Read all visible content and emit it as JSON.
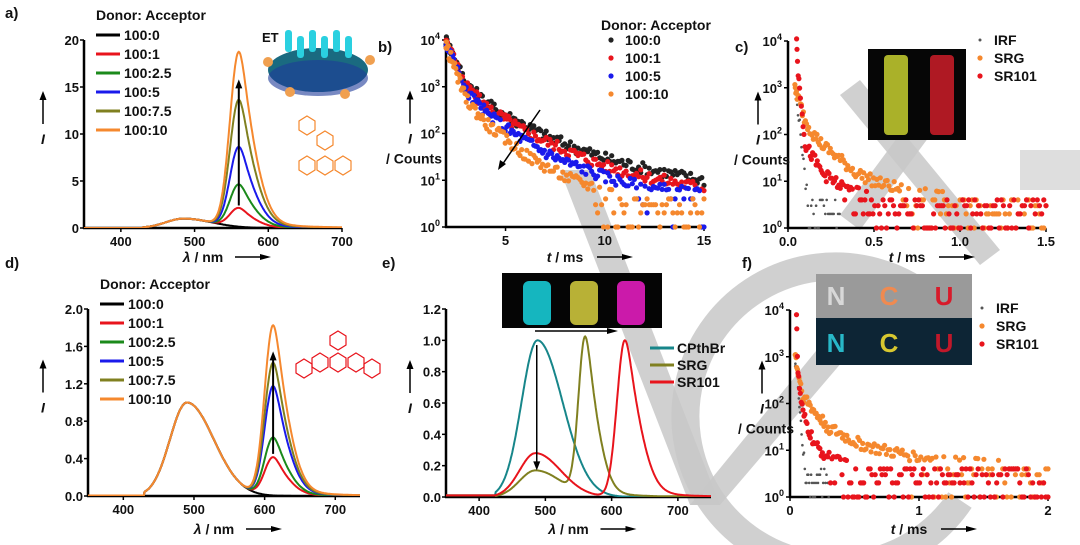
{
  "watermark": {
    "text": "VCH",
    "color": "#c8c8c8"
  },
  "chart_data": [
    {
      "panel": "a)",
      "type": "line",
      "xlabel": "λ / nm",
      "ylabel": "I",
      "xlim": [
        350,
        700
      ],
      "ylim": [
        0,
        20
      ],
      "xticks": [
        400,
        500,
        600,
        700
      ],
      "yticks": [
        0,
        5,
        10,
        15,
        20
      ],
      "legend_title": "Donor: Acceptor",
      "legend_position": "top-left",
      "annotation": "arrow upward at 560 nm (increasing acceptor)",
      "inset": "vesicle illustration with ET arrows; SRG molecular structure (orange)",
      "donor_peak_nm": 485,
      "acceptor_peak_nm": 560,
      "series": [
        {
          "name": "100:0",
          "color": "#000000",
          "donor_peak": 1.0,
          "acceptor_peak": 0.0
        },
        {
          "name": "100:1",
          "color": "#e8141c",
          "donor_peak": 1.0,
          "acceptor_peak": 2.0
        },
        {
          "name": "100:2.5",
          "color": "#1b8a1b",
          "donor_peak": 1.0,
          "acceptor_peak": 4.5
        },
        {
          "name": "100:5",
          "color": "#1a1aeb",
          "donor_peak": 1.0,
          "acceptor_peak": 8.5
        },
        {
          "name": "100:7.5",
          "color": "#808020",
          "donor_peak": 1.0,
          "acceptor_peak": 13.5
        },
        {
          "name": "100:10",
          "color": "#f5882e",
          "donor_peak": 1.0,
          "acceptor_peak": 18.6
        }
      ]
    },
    {
      "panel": "b)",
      "type": "scatter",
      "xlabel": "t / ms",
      "ylabel": "I / Counts",
      "yscale": "log",
      "xlim": [
        2,
        15
      ],
      "ylim": [
        1,
        10000
      ],
      "xticks": [
        5,
        10,
        15
      ],
      "yticks": [
        "10^0",
        "10^1",
        "10^2",
        "10^3",
        "10^4"
      ],
      "legend_title": "Donor: Acceptor",
      "legend_position": "top-right",
      "annotation": "arrow downward-left (decreasing lifetime)",
      "series": [
        {
          "name": "100:0",
          "color": "#222222",
          "x": [
            2,
            3,
            4,
            5,
            6,
            7,
            8,
            10,
            12,
            15
          ],
          "y": [
            10000,
            1200,
            450,
            250,
            150,
            90,
            60,
            30,
            18,
            10
          ]
        },
        {
          "name": "100:1",
          "color": "#e8141c",
          "x": [
            2,
            3,
            4,
            5,
            6,
            7,
            8,
            10,
            12,
            15
          ],
          "y": [
            10000,
            1000,
            380,
            200,
            110,
            70,
            45,
            20,
            12,
            7
          ]
        },
        {
          "name": "100:5",
          "color": "#1a1aeb",
          "x": [
            2,
            3,
            4,
            5,
            6,
            7,
            8,
            10,
            12,
            15
          ],
          "y": [
            9000,
            800,
            280,
            130,
            70,
            40,
            25,
            12,
            7,
            5
          ]
        },
        {
          "name": "100:10",
          "color": "#f5882e",
          "x": [
            2,
            3,
            4,
            5,
            6,
            7,
            8,
            10,
            12,
            15
          ],
          "y": [
            8000,
            550,
            170,
            75,
            35,
            20,
            12,
            6,
            4,
            3
          ]
        }
      ]
    },
    {
      "panel": "c)",
      "type": "scatter",
      "xlabel": "t / ms",
      "ylabel": "I / Counts",
      "yscale": "log",
      "xlim": [
        0,
        1.5
      ],
      "ylim": [
        1,
        10000
      ],
      "xticks": [
        "0.0",
        "0.5",
        "1.0",
        "1.5"
      ],
      "yticks": [
        "10^0",
        "10^1",
        "10^2",
        "10^3",
        "10^4"
      ],
      "legend_position": "top-right",
      "inset": "photo of two glowing vials (yellow, red)",
      "series": [
        {
          "name": "IRF",
          "color": "#555555",
          "x": [
            0.04,
            0.06,
            0.08,
            0.1,
            0.12,
            0.15,
            0.2,
            0.3
          ],
          "y": [
            800,
            300,
            60,
            10,
            4,
            2,
            2,
            2
          ]
        },
        {
          "name": "SRG",
          "color": "#f5882e",
          "x": [
            0.04,
            0.06,
            0.1,
            0.15,
            0.2,
            0.3,
            0.4,
            0.5,
            0.7,
            1.0,
            1.5
          ],
          "y": [
            900,
            600,
            200,
            100,
            60,
            30,
            15,
            10,
            6,
            4,
            3
          ]
        },
        {
          "name": "SR101",
          "color": "#e8141c",
          "x": [
            0.05,
            0.06,
            0.08,
            0.1,
            0.15,
            0.2,
            0.3,
            0.5,
            0.7,
            1.0,
            1.5
          ],
          "y": [
            10000,
            1800,
            400,
            60,
            30,
            15,
            8,
            4,
            3,
            2,
            2
          ]
        }
      ]
    },
    {
      "panel": "d)",
      "type": "line",
      "xlabel": "λ / nm",
      "ylabel": "I",
      "xlim": [
        350,
        735
      ],
      "ylim": [
        0,
        2.0
      ],
      "xticks": [
        400,
        500,
        600,
        700
      ],
      "yticks": [
        "0.0",
        "0.4",
        "0.8",
        "1.2",
        "1.6",
        "2.0"
      ],
      "legend_title": "Donor: Acceptor",
      "legend_position": "top-left",
      "annotation": "arrow upward at 612 nm",
      "inset": "SR101 molecular structure (red)",
      "donor_peak_nm": 490,
      "acceptor_peak_nm": 612,
      "series": [
        {
          "name": "100:0",
          "color": "#000000",
          "donor_peak": 1.0,
          "acceptor_peak": 0.0
        },
        {
          "name": "100:1",
          "color": "#e8141c",
          "donor_peak": 1.0,
          "acceptor_peak": 0.41
        },
        {
          "name": "100:2.5",
          "color": "#1b8a1b",
          "donor_peak": 1.0,
          "acceptor_peak": 0.62
        },
        {
          "name": "100:5",
          "color": "#1a1aeb",
          "donor_peak": 1.0,
          "acceptor_peak": 1.17
        },
        {
          "name": "100:7.5",
          "color": "#808020",
          "donor_peak": 1.0,
          "acceptor_peak": 1.42
        },
        {
          "name": "100:10",
          "color": "#f5882e",
          "donor_peak": 1.0,
          "acceptor_peak": 1.82
        }
      ]
    },
    {
      "panel": "e)",
      "type": "line",
      "xlabel": "λ / nm",
      "ylabel": "I",
      "xlim": [
        350,
        750
      ],
      "ylim": [
        0,
        1.2
      ],
      "xticks": [
        400,
        500,
        600,
        700
      ],
      "yticks": [
        "0.0",
        "0.2",
        "0.4",
        "0.6",
        "0.8",
        "1.0",
        "1.2"
      ],
      "legend_position": "right",
      "annotation": "arrow downward at 487 nm; horizontal arrow under inset photo",
      "inset": "photo of three powders (cyan, yellow, magenta)",
      "series": [
        {
          "name": "CPthBr",
          "color": "#17868a",
          "peak_nm": 488,
          "peak": 1.0
        },
        {
          "name": "SRG",
          "color": "#808020",
          "peak_nm": 560,
          "peak": 1.0,
          "donor_residual": 0.17
        },
        {
          "name": "SR101",
          "color": "#e8141c",
          "peak_nm": 620,
          "peak": 1.0,
          "donor_residual": 0.28
        }
      ]
    },
    {
      "panel": "f)",
      "type": "scatter",
      "xlabel": "t / ms",
      "ylabel": "I / Counts",
      "yscale": "log",
      "xlim": [
        0,
        2
      ],
      "ylim": [
        1,
        10000
      ],
      "xticks": [
        "0",
        "1",
        "2"
      ],
      "yticks": [
        "10^0",
        "10^1",
        "10^2",
        "10^3",
        "10^4"
      ],
      "legend_position": "top-right",
      "inset": "photo of letters N C U under ambient and UV light",
      "series": [
        {
          "name": "IRF",
          "color": "#555555",
          "x": [
            0.04,
            0.06,
            0.08,
            0.1,
            0.12,
            0.15,
            0.3
          ],
          "y": [
            800,
            300,
            60,
            10,
            4,
            2,
            2
          ]
        },
        {
          "name": "SRG",
          "color": "#f5882e",
          "x": [
            0.04,
            0.06,
            0.1,
            0.2,
            0.3,
            0.5,
            0.7,
            1.0,
            1.5,
            2.0
          ],
          "y": [
            1200,
            500,
            150,
            60,
            30,
            15,
            10,
            7,
            5,
            4
          ]
        },
        {
          "name": "SR101",
          "color": "#e8141c",
          "x": [
            0.05,
            0.06,
            0.08,
            0.1,
            0.15,
            0.2,
            0.3,
            0.5,
            1.0,
            2.0
          ],
          "y": [
            10000,
            500,
            150,
            60,
            25,
            12,
            7,
            4,
            3,
            2
          ]
        }
      ]
    }
  ]
}
